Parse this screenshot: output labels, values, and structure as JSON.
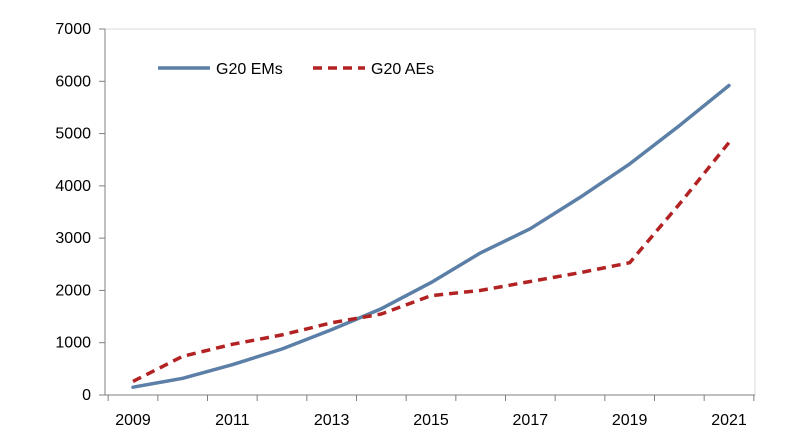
{
  "chart_data": {
    "type": "line",
    "x": [
      2009,
      2010,
      2011,
      2012,
      2013,
      2014,
      2015,
      2016,
      2017,
      2018,
      2019,
      2020,
      2021
    ],
    "x_tick_labels": [
      "2009",
      "2011",
      "2013",
      "2015",
      "2017",
      "2019",
      "2021"
    ],
    "xlim": [
      2009,
      2021
    ],
    "ylim": [
      0,
      7000
    ],
    "y_tick_labels": [
      "0",
      "1000",
      "2000",
      "3000",
      "4000",
      "5000",
      "6000",
      "7000"
    ],
    "grid": false,
    "legend_position": "top-left",
    "series": [
      {
        "name": "G20 EMs",
        "color": "#5B7FA6",
        "line_style": "solid",
        "values": [
          150,
          320,
          580,
          880,
          1250,
          1650,
          2150,
          2720,
          3180,
          3780,
          4420,
          5150,
          5920
        ]
      },
      {
        "name": "G20 AEs",
        "color": "#B22222",
        "line_style": "dashed",
        "values": [
          260,
          740,
          970,
          1150,
          1380,
          1550,
          1900,
          2000,
          2170,
          2340,
          2530,
          3650,
          4830
        ]
      }
    ]
  }
}
